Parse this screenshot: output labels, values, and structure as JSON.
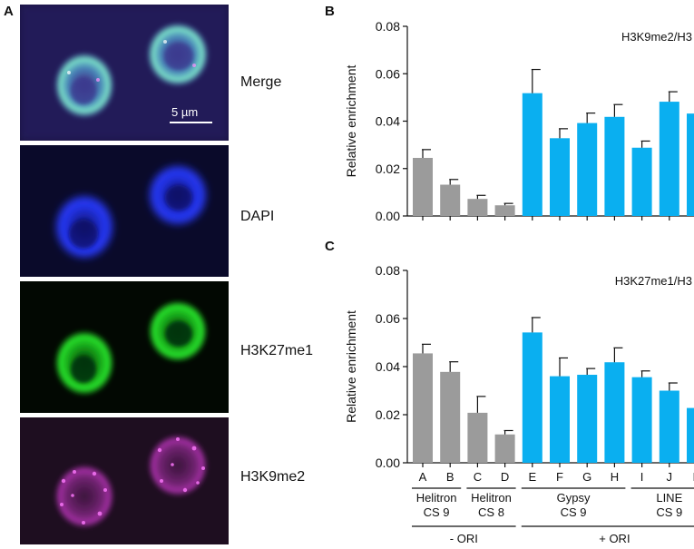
{
  "panel_letters": {
    "a": "A",
    "b": "B",
    "c": "C"
  },
  "micrographs": {
    "labels": [
      "Merge",
      "DAPI",
      "H3K27me1",
      "H3K9me2"
    ],
    "scale_bar": "5 µm",
    "colors": {
      "dapi": "#2233ff",
      "h3k27me1": "#22dd22",
      "h3k9me2": "#cc33cc"
    }
  },
  "colors": {
    "minus_ori": "#9b9b9b",
    "plus_ori": "#0aaff0"
  },
  "chart_data": [
    {
      "type": "bar",
      "title": "H3K9me2/H3",
      "ylabel": "Relative enrichment",
      "ylim": [
        0,
        0.08
      ],
      "yticks": [
        "0.00",
        "0.02",
        "0.04",
        "0.06",
        "0.08"
      ],
      "categories": [
        "A",
        "B",
        "C",
        "D",
        "E",
        "F",
        "G",
        "H",
        "I",
        "J",
        "K"
      ],
      "values": [
        0.0245,
        0.0132,
        0.0072,
        0.0045,
        0.0518,
        0.0328,
        0.0392,
        0.0418,
        0.0288,
        0.0482,
        0.0432
      ],
      "errors": [
        0.0035,
        0.0022,
        0.0015,
        0.0008,
        0.01,
        0.004,
        0.0042,
        0.0052,
        0.0028,
        0.0042,
        0.004
      ],
      "show_category_labels": false
    },
    {
      "type": "bar",
      "title": "H3K27me1/H3",
      "ylabel": "Relative enrichment",
      "ylim": [
        0,
        0.08
      ],
      "yticks": [
        "0.00",
        "0.02",
        "0.04",
        "0.06",
        "0.08"
      ],
      "categories": [
        "A",
        "B",
        "C",
        "D",
        "E",
        "F",
        "G",
        "H",
        "I",
        "J",
        "K"
      ],
      "values": [
        0.0455,
        0.0378,
        0.0208,
        0.0118,
        0.0542,
        0.036,
        0.0366,
        0.0418,
        0.0356,
        0.03,
        0.0228
      ],
      "errors": [
        0.0038,
        0.0042,
        0.0068,
        0.0016,
        0.0062,
        0.0076,
        0.0026,
        0.006,
        0.0026,
        0.0032,
        0.0032
      ],
      "show_category_labels": true
    }
  ],
  "groups": [
    {
      "line1": "Helitron",
      "line2": "CS 9"
    },
    {
      "line1": "Helitron",
      "line2": "CS 8"
    },
    {
      "line1": "Gypsy",
      "line2": "CS 9"
    },
    {
      "line1": "LINE",
      "line2": "CS 9"
    }
  ],
  "ori_groups": [
    "- ORI",
    "+ ORI"
  ]
}
